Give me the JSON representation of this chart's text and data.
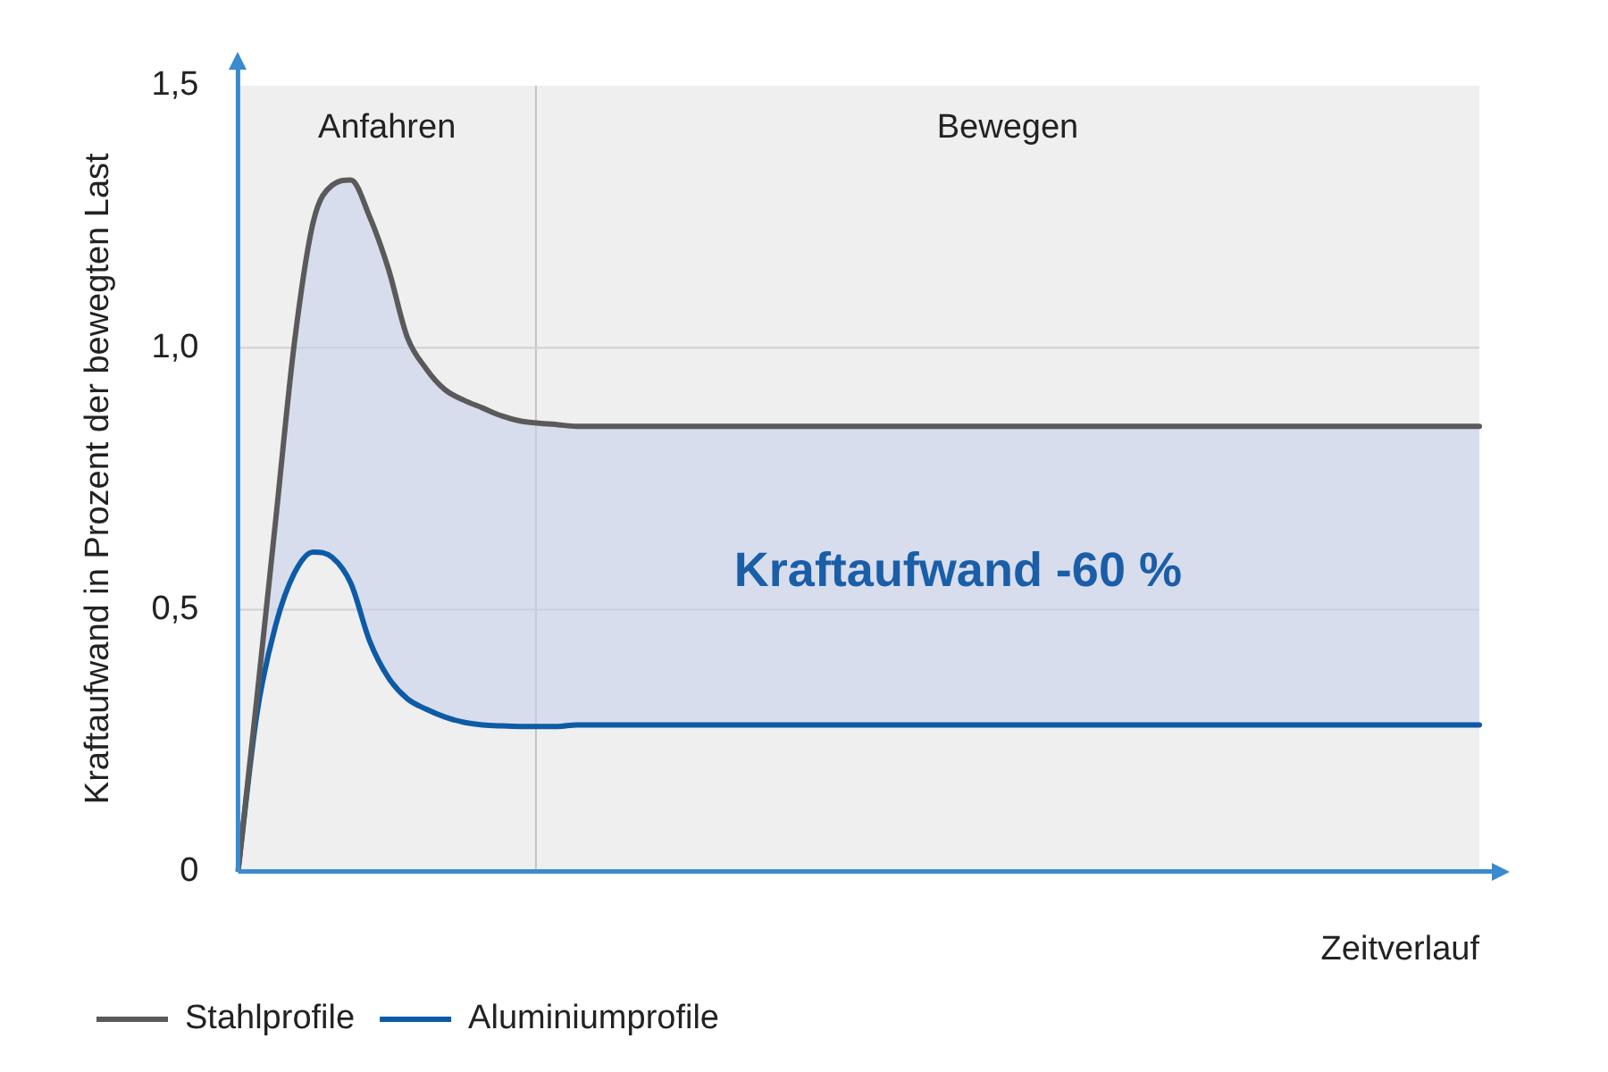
{
  "chart_data": {
    "type": "line",
    "ylabel": "Kraftaufwand in Prozent der bewegten Last",
    "xlabel": "Zeitverlauf",
    "categories": [
      null,
      null,
      null,
      null,
      null,
      null,
      null,
      null,
      null,
      null,
      null,
      null,
      null,
      null,
      null,
      null,
      null,
      null,
      null,
      null,
      null,
      null,
      null,
      null,
      null,
      null,
      null,
      null,
      null,
      null,
      null,
      null,
      null,
      null,
      null,
      null,
      null,
      null,
      null,
      null,
      null,
      null,
      null,
      null,
      null,
      null,
      null,
      null,
      null,
      null,
      null,
      null,
      null,
      null,
      null,
      null,
      null,
      null,
      null,
      null,
      null,
      null,
      null,
      null,
      null,
      null,
      null
    ],
    "ylim": [
      0,
      1.5
    ],
    "yticks": [
      {
        "value": 0,
        "label": "0"
      },
      {
        "value": 0.5,
        "label": "0,5"
      },
      {
        "value": 1,
        "label": "1,0"
      },
      {
        "value": 1.5,
        "label": "1,5"
      }
    ],
    "grid": "y",
    "legend": "bottom",
    "marker": "none",
    "line_style": "solid",
    "annotations": [
      "Anfahren",
      "Bewegen",
      "Kraftaufwand -60 %"
    ],
    "series": [
      {
        "name": "Stahlprofile",
        "color": "#5a5a5a",
        "values": [
          0,
          0.33,
          0.67,
          1.01,
          1.24,
          1.31,
          1.32,
          1.25,
          1.15,
          1.02,
          0.96,
          0.92,
          0.9,
          0.885,
          0.87,
          0.86,
          0.856,
          0.853,
          0.85,
          0.85,
          0.85,
          0.85,
          0.85,
          0.85,
          0.85,
          0.85,
          0.85,
          0.85,
          0.85,
          0.85,
          0.85,
          0.85,
          0.85,
          0.85,
          0.85,
          0.85,
          0.85,
          0.85,
          0.85,
          0.85,
          0.85,
          0.85,
          0.85,
          0.85,
          0.85,
          0.85,
          0.85,
          0.85,
          0.85,
          0.85,
          0.85,
          0.85,
          0.85,
          0.85,
          0.85,
          0.85,
          0.85,
          0.85,
          0.85,
          0.85,
          0.85,
          0.85,
          0.85,
          0.85,
          0.85,
          0.85,
          0.85
        ]
      },
      {
        "name": "Aluminiumprofile",
        "color": "#0d5ba6",
        "values": [
          0,
          0.3,
          0.47,
          0.57,
          0.61,
          0.6,
          0.55,
          0.44,
          0.37,
          0.33,
          0.31,
          0.295,
          0.285,
          0.28,
          0.278,
          0.277,
          0.277,
          0.277,
          0.28,
          0.28,
          0.28,
          0.28,
          0.28,
          0.28,
          0.28,
          0.28,
          0.28,
          0.28,
          0.28,
          0.28,
          0.28,
          0.28,
          0.28,
          0.28,
          0.28,
          0.28,
          0.28,
          0.28,
          0.28,
          0.28,
          0.28,
          0.28,
          0.28,
          0.28,
          0.28,
          0.28,
          0.28,
          0.28,
          0.28,
          0.28,
          0.28,
          0.28,
          0.28,
          0.28,
          0.28,
          0.28,
          0.28,
          0.28,
          0.28,
          0.28,
          0.28,
          0.28,
          0.28,
          0.28,
          0.28,
          0.28,
          0.28
        ]
      }
    ]
  }
}
